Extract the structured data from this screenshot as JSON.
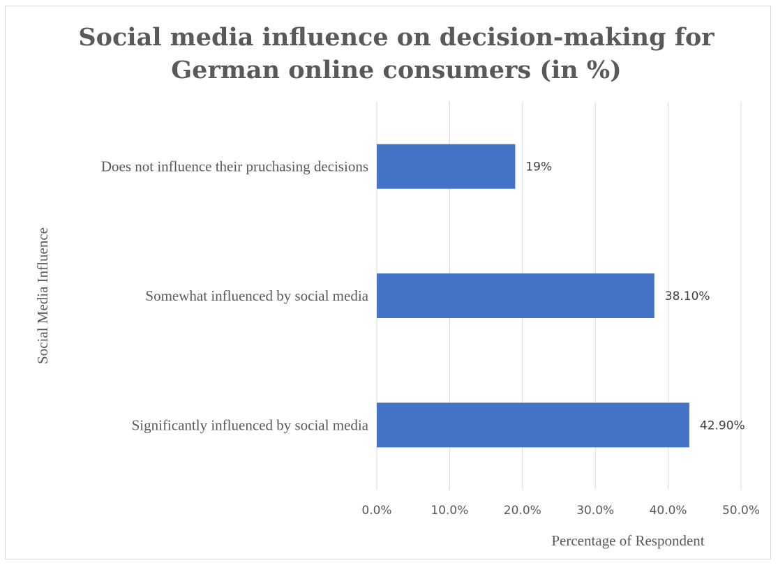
{
  "chart_data": {
    "type": "bar",
    "orientation": "horizontal",
    "title_lines": [
      "Social media influence on decision-making for",
      "German online consumers (in %)"
    ],
    "xlabel": "Percentage of Respondent",
    "ylabel": "Social Media Influence",
    "categories": [
      "Does not influence their pruchasing decisions",
      "Somewhat influenced by social media",
      "Significantly influenced by social media"
    ],
    "values": [
      19,
      38.1,
      42.9
    ],
    "data_labels": [
      "19%",
      "38.10%",
      "42.90%"
    ],
    "xlim": [
      0,
      50
    ],
    "ticks": [
      "0.0%",
      "10.0%",
      "20.0%",
      "30.0%",
      "40.0%",
      "50.0%"
    ],
    "tick_values": [
      0,
      10,
      20,
      30,
      40,
      50
    ],
    "grid": true,
    "bar_color": "#4472c4"
  }
}
